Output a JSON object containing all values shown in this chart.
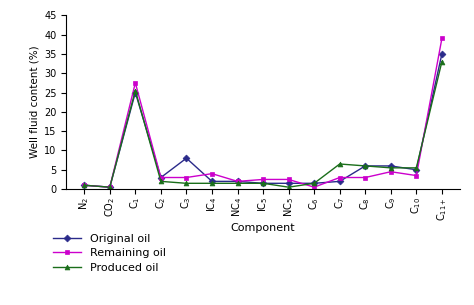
{
  "components": [
    "N$_2$",
    "CO$_2$",
    "C$_1$",
    "C$_2$",
    "C$_3$",
    "IC$_4$",
    "NC$_4$",
    "IC$_5$",
    "NC$_5$",
    "C$_6$",
    "C$_7$",
    "C$_8$",
    "C$_9$",
    "C$_{10}$",
    "C$_{11+}$"
  ],
  "original_oil": [
    1.0,
    0.5,
    25.0,
    3.0,
    8.0,
    2.0,
    2.0,
    1.5,
    1.5,
    1.5,
    2.0,
    6.0,
    6.0,
    5.0,
    35.0
  ],
  "remaining_oil": [
    1.0,
    0.5,
    27.5,
    3.0,
    3.0,
    4.0,
    2.0,
    2.5,
    2.5,
    0.5,
    3.0,
    3.0,
    4.5,
    3.5,
    39.0
  ],
  "produced_oil": [
    1.0,
    0.5,
    25.5,
    2.0,
    1.5,
    1.5,
    1.5,
    1.5,
    0.5,
    1.5,
    6.5,
    6.0,
    5.5,
    5.5,
    33.0
  ],
  "original_color": "#2a2a8a",
  "remaining_color": "#cc00cc",
  "produced_color": "#1a6e1a",
  "xlabel": "Component",
  "ylabel": "Well fluid content (%)",
  "ylim": [
    0,
    45
  ],
  "yticks": [
    0,
    5,
    10,
    15,
    20,
    25,
    30,
    35,
    40,
    45
  ],
  "legend_labels": [
    "Original oil",
    "Remaining oil",
    "Produced oil"
  ],
  "figsize": [
    4.74,
    3.05
  ],
  "dpi": 100
}
